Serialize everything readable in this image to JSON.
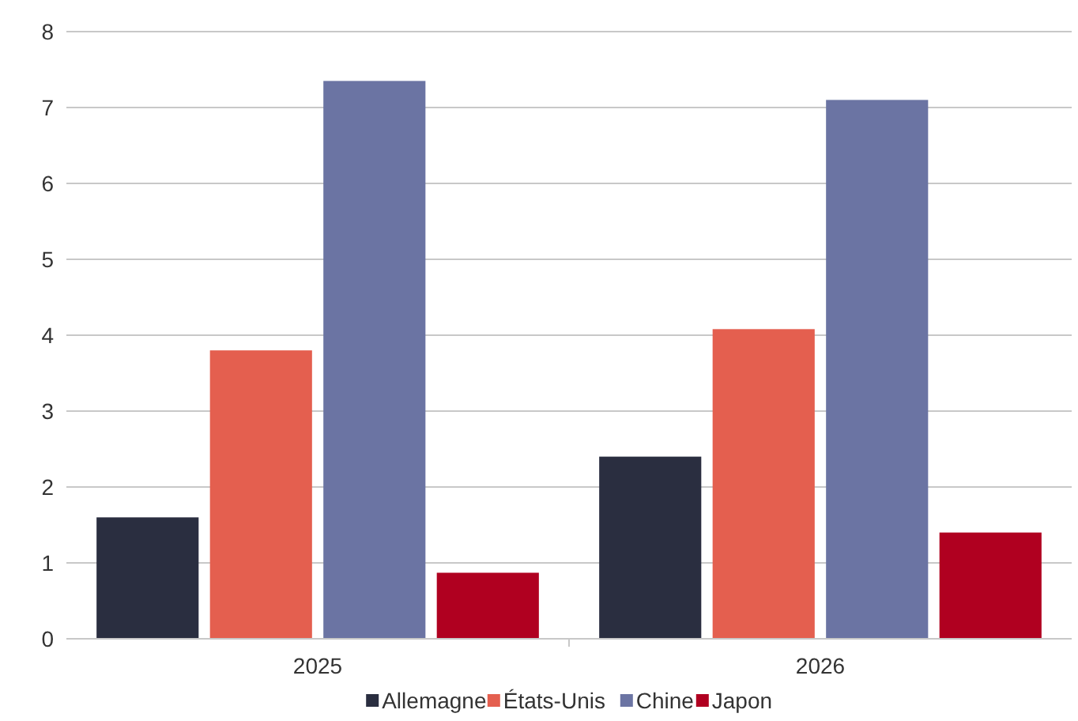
{
  "chart_data": {
    "type": "bar",
    "categories": [
      "2025",
      "2026"
    ],
    "series": [
      {
        "name": "Allemagne",
        "color": "#2a2e40",
        "values": [
          1.6,
          2.4
        ]
      },
      {
        "name": "États-Unis",
        "color": "#e45f4f",
        "values": [
          3.8,
          4.08
        ]
      },
      {
        "name": "Chine",
        "color": "#6b74a3",
        "values": [
          7.35,
          7.1
        ]
      },
      {
        "name": "Japon",
        "color": "#b00020",
        "values": [
          0.87,
          1.4
        ]
      }
    ],
    "ylim": [
      0,
      8
    ],
    "yticks": [
      0,
      1,
      2,
      3,
      4,
      5,
      6,
      7,
      8
    ],
    "grid": "y",
    "legend": "bottom"
  }
}
